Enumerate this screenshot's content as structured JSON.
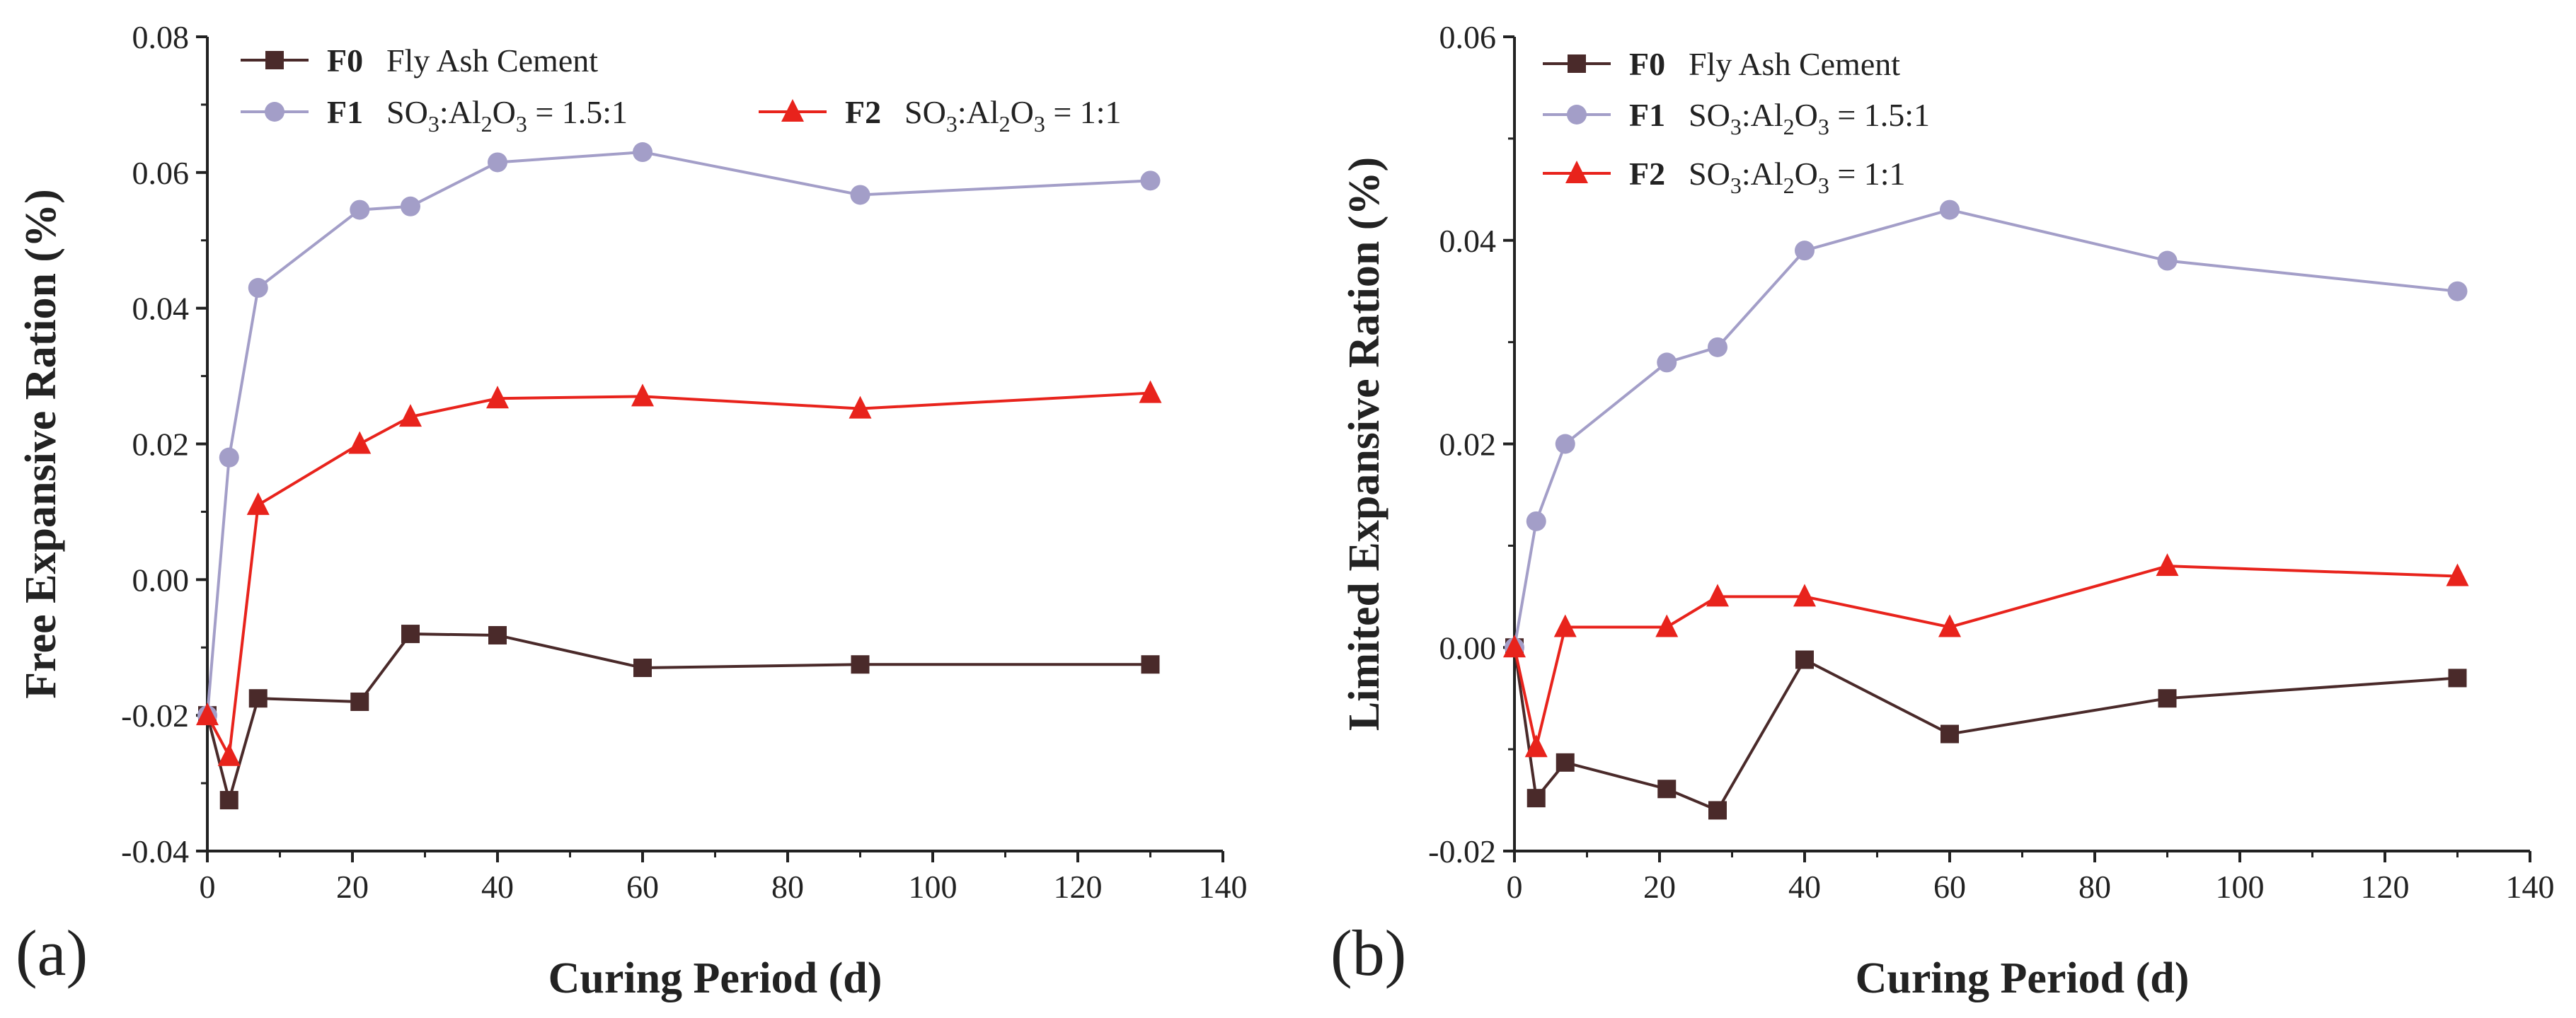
{
  "chart_data": [
    {
      "panel_label": "(a)",
      "type": "line",
      "xlabel": "Curing Period (d)",
      "ylabel": "Free Expansive Ration (%)",
      "xlim": [
        0,
        140
      ],
      "ylim": [
        -0.04,
        0.08
      ],
      "xticks": [
        0,
        20,
        40,
        60,
        80,
        100,
        120,
        140
      ],
      "yticks": [
        -0.04,
        -0.02,
        0.0,
        0.02,
        0.04,
        0.06,
        0.08
      ],
      "ytick_labels": [
        "-0.04",
        "-0.02",
        "0.00",
        "0.02",
        "0.04",
        "0.06",
        "0.08"
      ],
      "grid": false,
      "legend_position": "top-left",
      "series": [
        {
          "key": "F0",
          "name": "Fly Ash Cement",
          "marker": "square",
          "color": "#4a2a2a",
          "x": [
            0,
            3,
            7,
            21,
            28,
            40,
            60,
            90,
            130
          ],
          "y": [
            -0.02,
            -0.0325,
            -0.0175,
            -0.018,
            -0.008,
            -0.0082,
            -0.013,
            -0.0125,
            -0.0125
          ]
        },
        {
          "key": "F1",
          "name": "SO3:Al2O3 = 1.5:1",
          "marker": "circle",
          "color": "#a39ec8",
          "x": [
            0,
            3,
            7,
            21,
            28,
            40,
            60,
            90,
            130
          ],
          "y": [
            -0.02,
            0.018,
            0.043,
            0.0545,
            0.055,
            0.0615,
            0.063,
            0.0567,
            0.0588
          ]
        },
        {
          "key": "F2",
          "name": "SO3:Al2O3 = 1:1",
          "marker": "triangle",
          "color": "#e8231c",
          "x": [
            0,
            3,
            7,
            21,
            28,
            40,
            60,
            90,
            130
          ],
          "y": [
            -0.02,
            -0.026,
            0.011,
            0.02,
            0.024,
            0.0267,
            0.027,
            0.0252,
            0.0275
          ]
        }
      ]
    },
    {
      "panel_label": "(b)",
      "type": "line",
      "xlabel": "Curing Period (d)",
      "ylabel": "Limited Expansive Ration (%)",
      "xlim": [
        0,
        140
      ],
      "ylim": [
        -0.02,
        0.06
      ],
      "xticks": [
        0,
        20,
        40,
        60,
        80,
        100,
        120,
        140
      ],
      "yticks": [
        -0.02,
        0.0,
        0.02,
        0.04,
        0.06
      ],
      "ytick_labels": [
        "-0.02",
        "0.00",
        "0.02",
        "0.04",
        "0.06"
      ],
      "grid": false,
      "legend_position": "top-left",
      "series": [
        {
          "key": "F0",
          "name": "Fly Ash Cement",
          "marker": "square",
          "color": "#4a2a2a",
          "x": [
            0,
            3,
            7,
            21,
            28,
            40,
            60,
            90,
            130
          ],
          "y": [
            0.0,
            -0.0148,
            -0.0113,
            -0.0139,
            -0.016,
            -0.0012,
            -0.0085,
            -0.005,
            -0.003
          ]
        },
        {
          "key": "F1",
          "name": "SO3:Al2O3 = 1.5:1",
          "marker": "circle",
          "color": "#a39ec8",
          "x": [
            0,
            3,
            7,
            21,
            28,
            40,
            60,
            90,
            130
          ],
          "y": [
            0.0,
            0.0124,
            0.02,
            0.028,
            0.0295,
            0.039,
            0.043,
            0.038,
            0.035
          ]
        },
        {
          "key": "F2",
          "name": "SO3:Al2O3 = 1:1",
          "marker": "triangle",
          "color": "#e8231c",
          "x": [
            0,
            3,
            7,
            21,
            28,
            40,
            60,
            90,
            130
          ],
          "y": [
            0.0,
            -0.0098,
            0.002,
            0.002,
            0.005,
            0.005,
            0.002,
            0.008,
            0.007
          ]
        }
      ]
    }
  ]
}
